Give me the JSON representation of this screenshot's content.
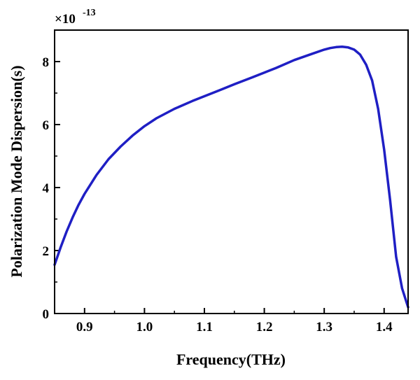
{
  "chart_data": {
    "type": "line",
    "xlabel": "Frequency(THz)",
    "ylabel": "Polarization Mode Dispersion(s)",
    "y_multiplier": {
      "base": "×10",
      "exponent": "-13"
    },
    "xlim": [
      0.85,
      1.44
    ],
    "ylim": [
      0,
      9
    ],
    "x_ticks": [
      {
        "value": 0.9,
        "label": "0.9"
      },
      {
        "value": 1.0,
        "label": "1.0"
      },
      {
        "value": 1.1,
        "label": "1.1"
      },
      {
        "value": 1.2,
        "label": "1.2"
      },
      {
        "value": 1.3,
        "label": "1.3"
      },
      {
        "value": 1.4,
        "label": "1.4"
      }
    ],
    "y_ticks": [
      {
        "value": 0,
        "label": "0"
      },
      {
        "value": 2,
        "label": "2"
      },
      {
        "value": 4,
        "label": "4"
      },
      {
        "value": 6,
        "label": "6"
      },
      {
        "value": 8,
        "label": "8"
      }
    ],
    "grid": false,
    "series": [
      {
        "color": "#1f1fc4",
        "x": [
          0.85,
          0.86,
          0.87,
          0.88,
          0.89,
          0.9,
          0.92,
          0.94,
          0.96,
          0.98,
          1.0,
          1.02,
          1.05,
          1.08,
          1.1,
          1.12,
          1.15,
          1.18,
          1.2,
          1.22,
          1.25,
          1.28,
          1.3,
          1.31,
          1.32,
          1.33,
          1.34,
          1.35,
          1.36,
          1.37,
          1.38,
          1.39,
          1.4,
          1.41,
          1.42,
          1.43,
          1.44
        ],
        "y": [
          1.55,
          2.1,
          2.6,
          3.05,
          3.45,
          3.8,
          4.4,
          4.9,
          5.3,
          5.65,
          5.95,
          6.2,
          6.5,
          6.75,
          6.9,
          7.05,
          7.28,
          7.5,
          7.65,
          7.8,
          8.05,
          8.25,
          8.38,
          8.43,
          8.46,
          8.47,
          8.45,
          8.38,
          8.22,
          7.9,
          7.4,
          6.5,
          5.2,
          3.6,
          1.8,
          0.8,
          0.2
        ]
      }
    ]
  }
}
